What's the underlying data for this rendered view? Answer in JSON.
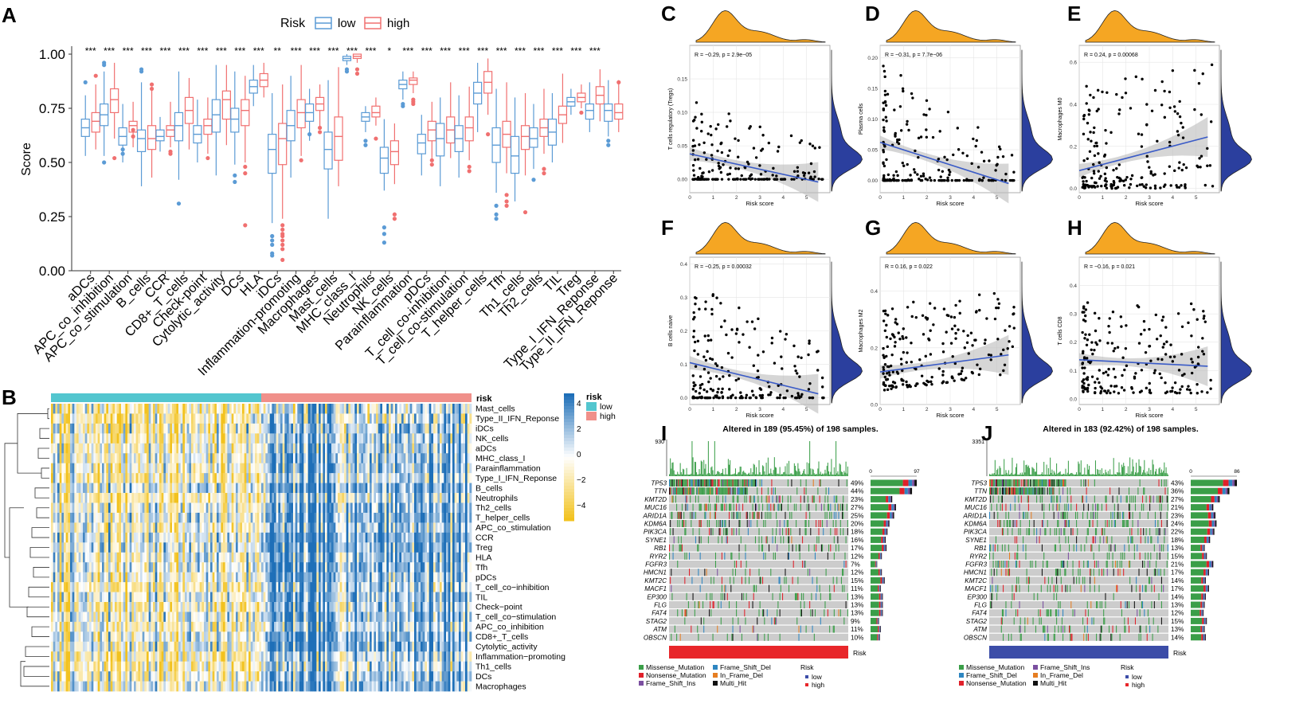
{
  "colors": {
    "low": "#5B9BD5",
    "high": "#F07070",
    "risk_low_bar": "#53C6CF",
    "risk_high_bar": "#F0908A",
    "heat_high": "#1E6FB8",
    "heat_mid": "#FFFFFF",
    "heat_low": "#F2C21E",
    "density_top": "#F5A623",
    "density_side": "#2B3F9E",
    "fit_line": "#3A5BC7",
    "ci_band": "#BBBBBB",
    "missense": "#3A9E48",
    "nonsense": "#E0202A",
    "frame_shift_ins": "#7B4FA0",
    "frame_shift_del": "#2E86C1",
    "in_frame_del": "#E67E22",
    "multi_hit": "#111111",
    "oncoprint_bg": "#CCCCCC",
    "tmb_bar": "#3A9E48"
  },
  "chart_data": [
    {
      "panel": "A",
      "type": "boxplot",
      "legend_title": "Risk",
      "legend_labels": [
        "low",
        "high"
      ],
      "ylabel": "Score",
      "ylim": [
        0,
        1
      ],
      "yticks": [
        "0.00",
        "0.25",
        "0.50",
        "0.75",
        "1.00"
      ],
      "categories": [
        "aDCs",
        "APC_co_inhibition",
        "APC_co_stimulation",
        "B_cells",
        "CCR",
        "CD8+_T_cells",
        "Check-point",
        "Cytolytic_activity",
        "DCs",
        "HLA",
        "iDCs",
        "Inflammation-promoting",
        "Macrophages",
        "Mast_cells",
        "MHC_class_I",
        "Neutrophils",
        "NK_cells",
        "Parainflammation",
        "pDCs",
        "T_cell_co-inhibition",
        "T_cell_co-stimulation",
        "T_helper_cells",
        "Tfh",
        "Th1_cells",
        "Th2_cells",
        "TIL",
        "Treg",
        "Type_I_IFN_Reponse",
        "Type_II_IFN_Reponse"
      ],
      "significance": [
        "***",
        "***",
        "***",
        "***",
        "***",
        "***",
        "***",
        "***",
        "***",
        "***",
        "**",
        "***",
        "***",
        "***",
        "***",
        "***",
        "*",
        "***",
        "***",
        "***",
        "***",
        "***",
        "***",
        "***",
        "***",
        "***",
        "***",
        "***",
        ""
      ],
      "series": [
        {
          "name": "low",
          "median": [
            0.66,
            0.72,
            0.62,
            0.61,
            0.62,
            0.67,
            0.63,
            0.72,
            0.7,
            0.85,
            0.56,
            0.67,
            0.73,
            0.56,
            0.98,
            0.71,
            0.52,
            0.86,
            0.59,
            0.61,
            0.61,
            0.82,
            0.58,
            0.53,
            0.61,
            0.64,
            0.78,
            0.74,
            0.74
          ],
          "q1": [
            0.62,
            0.67,
            0.58,
            0.55,
            0.6,
            0.6,
            0.59,
            0.64,
            0.64,
            0.82,
            0.45,
            0.6,
            0.69,
            0.47,
            0.97,
            0.69,
            0.45,
            0.84,
            0.54,
            0.53,
            0.55,
            0.77,
            0.5,
            0.45,
            0.57,
            0.58,
            0.76,
            0.7,
            0.69
          ],
          "q3": [
            0.7,
            0.77,
            0.66,
            0.65,
            0.65,
            0.73,
            0.67,
            0.79,
            0.75,
            0.88,
            0.63,
            0.74,
            0.77,
            0.64,
            0.99,
            0.73,
            0.57,
            0.88,
            0.63,
            0.68,
            0.67,
            0.87,
            0.66,
            0.62,
            0.66,
            0.7,
            0.8,
            0.77,
            0.77
          ],
          "lo": [
            0.53,
            0.53,
            0.5,
            0.39,
            0.55,
            0.42,
            0.5,
            0.44,
            0.49,
            0.76,
            0.22,
            0.43,
            0.6,
            0.24,
            0.95,
            0.64,
            0.37,
            0.79,
            0.44,
            0.39,
            0.43,
            0.64,
            0.36,
            0.32,
            0.47,
            0.5,
            0.72,
            0.64,
            0.62
          ],
          "hi": [
            0.81,
            0.92,
            0.77,
            0.87,
            0.71,
            0.92,
            0.79,
            0.95,
            0.92,
            0.95,
            0.82,
            0.9,
            0.84,
            0.88,
            1.0,
            0.76,
            0.7,
            0.92,
            0.72,
            0.8,
            0.81,
            0.96,
            0.84,
            0.8,
            0.77,
            0.82,
            0.84,
            0.87,
            0.88
          ],
          "outliers": [
            [
              0.87
            ],
            [
              0.96,
              0.95,
              0.5
            ],
            [
              0.56,
              0.54
            ],
            [
              0.93,
              0.92
            ],
            [],
            [
              0.31
            ],
            [],
            [],
            [
              0.44,
              0.41
            ],
            [],
            [
              0.16,
              0.14,
              0.12,
              0.08,
              0.07
            ],
            [],
            [
              0.63
            ],
            [],
            [
              0.93,
              0.92
            ],
            [
              0.6,
              0.58
            ],
            [
              0.2,
              0.17,
              0.13
            ],
            [
              0.77,
              0.76
            ],
            [],
            [],
            [],
            [],
            [
              0.3,
              0.26,
              0.24
            ],
            [],
            [
              0.42
            ],
            [],
            [],
            [],
            [
              0.6,
              0.58
            ]
          ]
        },
        {
          "name": "high",
          "median": [
            0.69,
            0.79,
            0.67,
            0.61,
            0.65,
            0.74,
            0.67,
            0.79,
            0.74,
            0.88,
            0.61,
            0.73,
            0.77,
            0.62,
            0.99,
            0.73,
            0.55,
            0.88,
            0.65,
            0.65,
            0.66,
            0.87,
            0.63,
            0.62,
            0.66,
            0.72,
            0.8,
            0.81,
            0.73
          ],
          "q1": [
            0.64,
            0.73,
            0.64,
            0.56,
            0.62,
            0.68,
            0.63,
            0.7,
            0.67,
            0.85,
            0.49,
            0.66,
            0.74,
            0.51,
            0.98,
            0.71,
            0.49,
            0.86,
            0.6,
            0.59,
            0.6,
            0.82,
            0.57,
            0.56,
            0.62,
            0.68,
            0.78,
            0.77,
            0.7
          ],
          "q3": [
            0.73,
            0.84,
            0.69,
            0.67,
            0.67,
            0.8,
            0.7,
            0.83,
            0.79,
            0.91,
            0.68,
            0.79,
            0.8,
            0.71,
            1.0,
            0.76,
            0.6,
            0.89,
            0.69,
            0.71,
            0.71,
            0.92,
            0.69,
            0.67,
            0.7,
            0.76,
            0.82,
            0.85,
            0.77
          ],
          "lo": [
            0.56,
            0.61,
            0.57,
            0.43,
            0.57,
            0.56,
            0.54,
            0.58,
            0.5,
            0.8,
            0.24,
            0.53,
            0.66,
            0.39,
            0.96,
            0.67,
            0.4,
            0.82,
            0.52,
            0.52,
            0.51,
            0.72,
            0.45,
            0.44,
            0.54,
            0.59,
            0.75,
            0.69,
            0.64
          ],
          "hi": [
            0.86,
            0.96,
            0.78,
            0.85,
            0.78,
            0.89,
            0.8,
            0.95,
            0.9,
            0.96,
            0.86,
            0.95,
            0.86,
            0.94,
            1.0,
            0.8,
            0.68,
            0.92,
            0.78,
            0.87,
            0.85,
            0.98,
            0.87,
            0.82,
            0.84,
            0.91,
            0.86,
            0.93,
            0.88
          ],
          "outliers": [
            [
              0.9
            ],
            [
              0.52
            ],
            [
              0.65,
              0.62
            ],
            [
              0.86,
              0.84
            ],
            [
              0.55,
              0.54
            ],
            [],
            [
              0.52
            ],
            [],
            [
              0.48,
              0.45,
              0.21
            ],
            [],
            [
              0.21,
              0.19,
              0.17,
              0.16,
              0.14,
              0.12,
              0.1,
              0.05
            ],
            [
              0.51
            ],
            [
              0.66,
              0.64
            ],
            [],
            [
              0.93,
              0.91
            ],
            [
              0.61
            ],
            [
              0.26,
              0.24
            ],
            [
              0.79,
              0.78,
              0.77
            ],
            [
              0.51,
              0.49
            ],
            [],
            [
              0.48,
              0.46
            ],
            [
              0.63
            ],
            [
              0.35,
              0.32,
              0.3
            ],
            [
              0.27
            ],
            [
              0.47,
              0.45
            ],
            [],
            [
              0.73
            ],
            [],
            [
              0.87
            ]
          ]
        }
      ]
    },
    {
      "panel": "B",
      "type": "heatmap",
      "annotation_label": "risk",
      "legend_title": "risk",
      "legend_labels": [
        "low",
        "high"
      ],
      "scale_ticks": [
        "4",
        "2",
        "0",
        "−2",
        "−4"
      ],
      "rows": [
        "Mast_cells",
        "Type_II_IFN_Reponse",
        "iDCs",
        "NK_cells",
        "aDCs",
        "MHC_class_I",
        "Parainflammation",
        "Type_I_IFN_Reponse",
        "B_cells",
        "Neutrophils",
        "Th2_cells",
        "T_helper_cells",
        "APC_co_stimulation",
        "CCR",
        "Treg",
        "HLA",
        "Tfh",
        "pDCs",
        "T_cell_co−inhibition",
        "TIL",
        "Check−point",
        "T_cell_co−stimulation",
        "APC_co_inhibition",
        "CD8+_T_cells",
        "Cytolytic_activity",
        "Inflammation−promoting",
        "Th1_cells",
        "DCs",
        "Macrophages"
      ],
      "n_low": 99,
      "n_high": 99
    },
    {
      "panel": "C",
      "type": "scatter",
      "xlabel": "Risk score",
      "ylabel": "T cells regulatory (Tregs)",
      "annotation": "R = −0.29, p = 2.9e−05",
      "xlim": [
        0,
        6
      ],
      "ylim": [
        -0.02,
        0.2
      ],
      "xticks": [
        0,
        1,
        2,
        3,
        4,
        5
      ],
      "yticks": [
        0.0,
        0.05,
        0.1,
        0.15
      ],
      "ytick_labels": [
        "0.00",
        "0.05",
        "0.10",
        "0.15"
      ],
      "fit": [
        [
          0,
          0.038
        ],
        [
          5.5,
          -0.004
        ]
      ],
      "seed": 11,
      "n": 200,
      "kind": "treg"
    },
    {
      "panel": "D",
      "type": "scatter",
      "xlabel": "Risk score",
      "ylabel": "Plasma cells",
      "annotation": "R = −0.31, p = 7.7e−06",
      "xlim": [
        0,
        6
      ],
      "ylim": [
        -0.02,
        0.22
      ],
      "xticks": [
        0,
        1,
        2,
        3,
        4,
        5
      ],
      "yticks": [
        0.0,
        0.05,
        0.1,
        0.15,
        0.2
      ],
      "ytick_labels": [
        "0.00",
        "0.05",
        "0.10",
        "0.15",
        "0.20"
      ],
      "fit": [
        [
          0,
          0.062
        ],
        [
          5.5,
          -0.005
        ]
      ],
      "seed": 23,
      "n": 200,
      "kind": "plasma"
    },
    {
      "panel": "E",
      "type": "scatter",
      "xlabel": "Risk score",
      "ylabel": "Macrophages M0",
      "annotation": "R = 0.24, p = 0.00068",
      "xlim": [
        0,
        6
      ],
      "ylim": [
        -0.02,
        0.68
      ],
      "xticks": [
        0,
        1,
        2,
        3,
        4,
        5
      ],
      "yticks": [
        0.0,
        0.2,
        0.4,
        0.6
      ],
      "ytick_labels": [
        "0.0",
        "0.2",
        "0.4",
        "0.6"
      ],
      "fit": [
        [
          0,
          0.085
        ],
        [
          5.5,
          0.245
        ]
      ],
      "seed": 37,
      "n": 200,
      "kind": "m0"
    },
    {
      "panel": "F",
      "type": "scatter",
      "xlabel": "Risk score",
      "ylabel": "B cells naive",
      "annotation": "R = −0.25, p = 0.00032",
      "xlim": [
        0,
        6
      ],
      "ylim": [
        -0.02,
        0.42
      ],
      "xticks": [
        0,
        1,
        2,
        3,
        4,
        5
      ],
      "yticks": [
        0.0,
        0.1,
        0.2,
        0.3,
        0.4
      ],
      "ytick_labels": [
        "0.0",
        "0.1",
        "0.2",
        "0.3",
        "0.4"
      ],
      "fit": [
        [
          0,
          0.105
        ],
        [
          5.5,
          0.012
        ]
      ],
      "seed": 41,
      "n": 200,
      "kind": "bnaive"
    },
    {
      "panel": "G",
      "type": "scatter",
      "xlabel": "Risk score",
      "ylabel": "Macrophages M2",
      "annotation": "R = 0.16, p = 0.022",
      "xlim": [
        0,
        6
      ],
      "ylim": [
        0.0,
        0.52
      ],
      "xticks": [
        0,
        1,
        2,
        3,
        4,
        5
      ],
      "yticks": [
        0.0,
        0.2,
        0.4
      ],
      "ytick_labels": [
        "0.0",
        "0.2",
        "0.4"
      ],
      "fit": [
        [
          0,
          0.115
        ],
        [
          5.5,
          0.175
        ]
      ],
      "seed": 53,
      "n": 200,
      "kind": "m2"
    },
    {
      "panel": "H",
      "type": "scatter",
      "xlabel": "Risk score",
      "ylabel": "T cells CD8",
      "annotation": "R = −0.16, p = 0.021",
      "xlim": [
        0,
        6
      ],
      "ylim": [
        -0.02,
        0.5
      ],
      "xticks": [
        0,
        1,
        2,
        3,
        4,
        5
      ],
      "yticks": [
        0.0,
        0.1,
        0.2,
        0.3,
        0.4
      ],
      "ytick_labels": [
        "0.0",
        "0.1",
        "0.2",
        "0.3",
        "0.4"
      ],
      "fit": [
        [
          0,
          0.138
        ],
        [
          5.5,
          0.115
        ]
      ],
      "seed": 67,
      "n": 200,
      "kind": "cd8"
    },
    {
      "panel": "I",
      "type": "oncoprint",
      "title": "Altered in 189 (95.45%) of 198 samples.",
      "tmb_max": "930",
      "side_ticks": [
        "0",
        "97"
      ],
      "genes": [
        "TP53",
        "TTN",
        "KMT2D",
        "MUC16",
        "ARID1A",
        "KDM6A",
        "PIK3CA",
        "SYNE1",
        "RB1",
        "RYR2",
        "FGFR3",
        "HMCN1",
        "KMT2C",
        "MACF1",
        "EP300",
        "FLG",
        "FAT4",
        "STAG2",
        "ATM",
        "OBSCN"
      ],
      "percents": [
        "49%",
        "44%",
        "23%",
        "27%",
        "25%",
        "20%",
        "18%",
        "16%",
        "17%",
        "12%",
        "7%",
        "12%",
        "15%",
        "11%",
        "13%",
        "13%",
        "13%",
        "9%",
        "11%",
        "10%"
      ],
      "freq": [
        49,
        44,
        23,
        27,
        25,
        20,
        18,
        16,
        17,
        12,
        7,
        12,
        15,
        11,
        13,
        13,
        13,
        9,
        11,
        10
      ],
      "risk_label": "Risk",
      "risk_group": "high",
      "legend": [
        "Missense_Mutation",
        "Nonsense_Mutation",
        "Frame_Shift_Ins",
        "Frame_Shift_Del",
        "In_Frame_Del",
        "Multi_Hit"
      ],
      "legend_keys": [
        "missense",
        "nonsense",
        "frame_shift_ins",
        "frame_shift_del",
        "in_frame_del",
        "multi_hit"
      ],
      "risk_legend_title": "Risk",
      "risk_legend": [
        "low",
        "high"
      ],
      "seed": 101
    },
    {
      "panel": "J",
      "type": "oncoprint",
      "title": "Altered in 183 (92.42%) of 198 samples.",
      "tmb_max": "3351",
      "side_ticks": [
        "0",
        "86"
      ],
      "genes": [
        "TP53",
        "TTN",
        "KMT2D",
        "MUC16",
        "ARID1A",
        "KDM6A",
        "PIK3CA",
        "SYNE1",
        "RB1",
        "RYR2",
        "FGFR3",
        "HMCN1",
        "KMT2C",
        "MACF1",
        "EP300",
        "FLG",
        "FAT4",
        "STAG2",
        "ATM",
        "OBSCN"
      ],
      "percents": [
        "43%",
        "36%",
        "27%",
        "21%",
        "23%",
        "24%",
        "22%",
        "18%",
        "13%",
        "15%",
        "21%",
        "17%",
        "14%",
        "17%",
        "14%",
        "13%",
        "12%",
        "15%",
        "13%",
        "14%"
      ],
      "freq": [
        43,
        36,
        27,
        21,
        23,
        24,
        22,
        18,
        13,
        15,
        21,
        17,
        14,
        17,
        14,
        13,
        12,
        15,
        13,
        14
      ],
      "risk_label": "Risk",
      "risk_group": "low",
      "legend": [
        "Missense_Mutation",
        "Frame_Shift_Del",
        "Nonsense_Mutation",
        "Frame_Shift_Ins",
        "In_Frame_Del",
        "Multi_Hit"
      ],
      "legend_keys": [
        "missense",
        "frame_shift_del",
        "nonsense",
        "frame_shift_ins",
        "in_frame_del",
        "multi_hit"
      ],
      "risk_legend_title": "Risk",
      "risk_legend": [
        "low",
        "high"
      ],
      "seed": 202
    }
  ],
  "panel_labels": [
    "A",
    "B",
    "C",
    "D",
    "E",
    "F",
    "G",
    "H",
    "I",
    "J"
  ]
}
